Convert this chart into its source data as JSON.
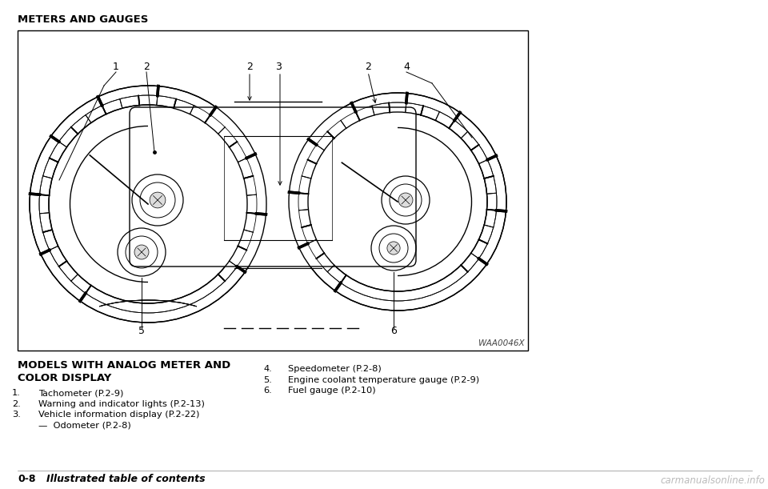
{
  "title": "METERS AND GAUGES",
  "watermark": "WAA0046X",
  "left_heading_line1": "MODELS WITH ANALOG METER AND",
  "left_heading_line2": "COLOR DISPLAY",
  "items_left": [
    [
      "1.",
      "Tachometer (P.2-9)"
    ],
    [
      "2.",
      "Warning and indicator lights (P.2-13)"
    ],
    [
      "3.",
      "Vehicle information display (P.2-22)"
    ],
    [
      "",
      "—  Odometer (P.2-8)"
    ]
  ],
  "items_right": [
    [
      "4.",
      "Speedometer (P.2-8)"
    ],
    [
      "5.",
      "Engine coolant temperature gauge (P.2-9)"
    ],
    [
      "6.",
      "Fuel gauge (P.2-10)"
    ]
  ],
  "section_label_num": "0-8",
  "section_label_text": "Illustrated table of contents",
  "bg_color": "#ffffff",
  "box_bg": "#ffffff",
  "lc": "#000000"
}
